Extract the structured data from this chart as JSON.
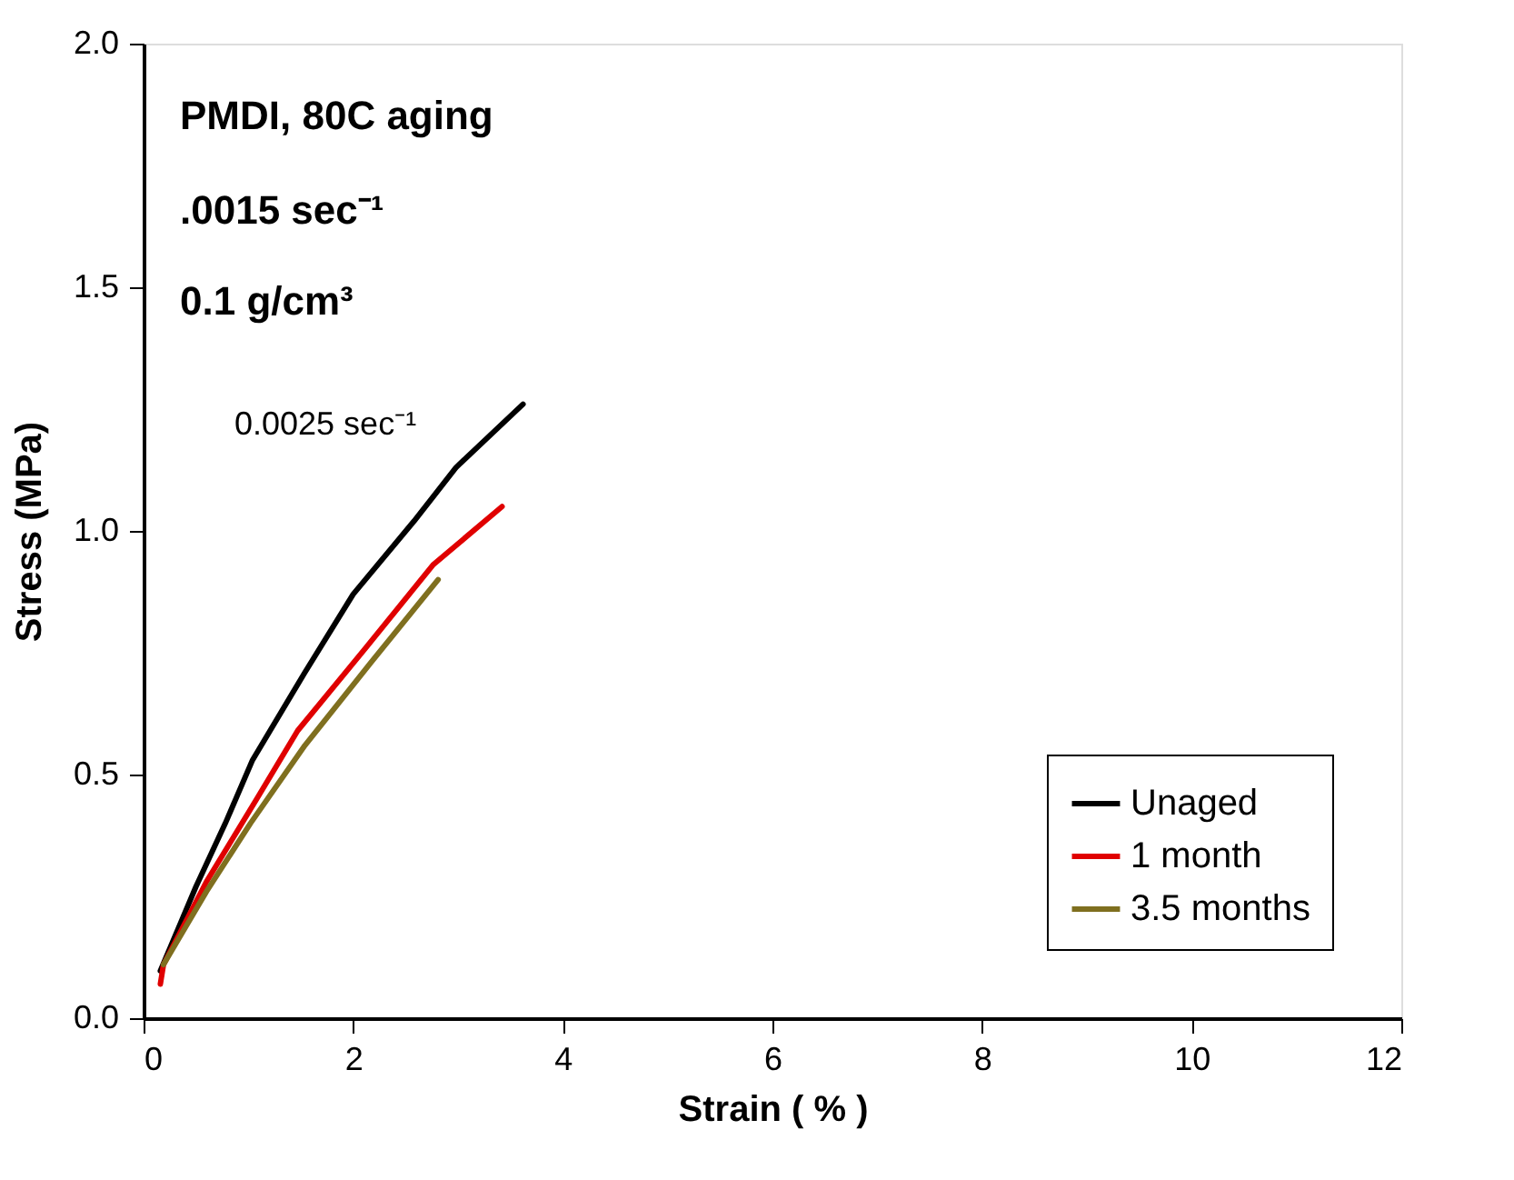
{
  "chart_data": {
    "type": "line",
    "xlabel": "Strain ( % )",
    "ylabel": "Stress (MPa)",
    "annotations": [
      "PMDI,  80C aging",
      ".0015 sec⁻¹",
      "0.1 g/cm³",
      "0.0025 sec⁻¹"
    ],
    "xlim": [
      0,
      12
    ],
    "xticks": [
      0,
      2,
      4,
      6,
      8,
      10,
      12
    ],
    "ylim": [
      0,
      2.0
    ],
    "yticks": [
      {
        "value": 0,
        "label": "0.0"
      },
      {
        "value": 0.5,
        "label": "0.5"
      },
      {
        "value": 1.0,
        "label": "1.0"
      },
      {
        "value": 1.5,
        "label": "1.5"
      },
      {
        "value": 2.0,
        "label": "2.0"
      }
    ],
    "grid": false,
    "legend": "bottom right",
    "marker": "none",
    "line_style": "solid",
    "series": [
      {
        "name": "Unaged",
        "color": "#000000",
        "x": [
          0.16,
          0.5,
          0.78,
          1.04,
          1.54,
          2.0,
          2.58,
          2.98,
          3.62
        ],
        "values": [
          0.097,
          0.27,
          0.4,
          0.53,
          0.71,
          0.87,
          1.02,
          1.13,
          1.26
        ]
      },
      {
        "name": "1 month",
        "color": "#e00000",
        "x": [
          0.16,
          0.19,
          0.6,
          1.08,
          1.47,
          2.12,
          2.76,
          3.42
        ],
        "values": [
          0.07,
          0.11,
          0.28,
          0.45,
          0.59,
          0.76,
          0.93,
          1.05
        ]
      },
      {
        "name": "3.5 months",
        "color": "#7f6f1f",
        "x": [
          0.19,
          0.6,
          1.02,
          1.54,
          2.17,
          2.81
        ],
        "values": [
          0.11,
          0.26,
          0.4,
          0.56,
          0.73,
          0.9
        ]
      }
    ]
  }
}
